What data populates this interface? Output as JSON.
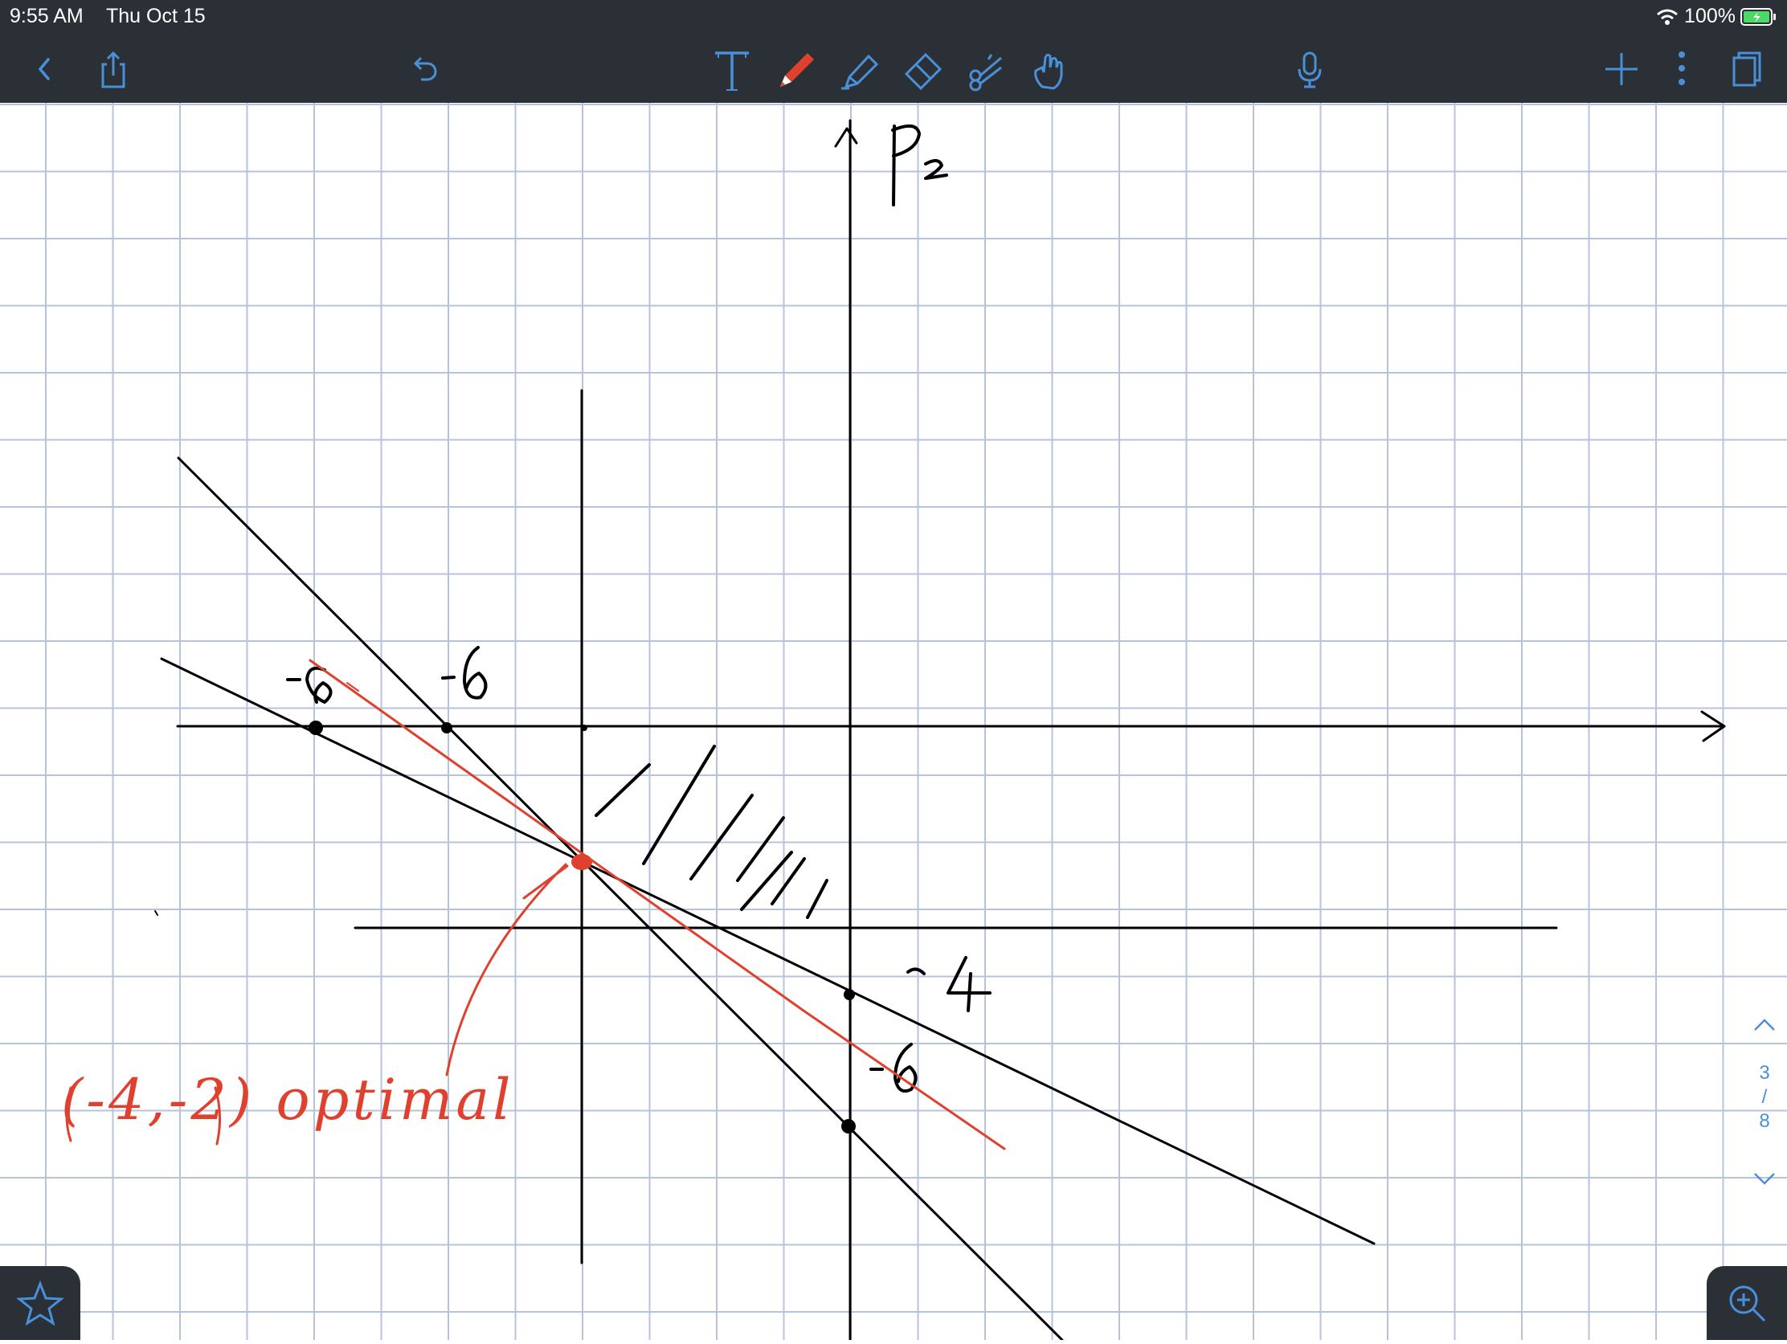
{
  "status_bar": {
    "time": "9:55 AM",
    "date": "Thu Oct 15",
    "battery": "100%"
  },
  "toolbar": {
    "icon_color": "#4a90d9",
    "active_tool_color": "#e0412f",
    "left": [
      "back-icon",
      "share-icon",
      "undo-icon"
    ],
    "tools": [
      "text-tool-icon",
      "pen-icon",
      "highlighter-icon",
      "eraser-icon",
      "lasso-scissors-icon",
      "hand-pointer-icon"
    ],
    "audio": "microphone-icon",
    "right": [
      "add-page-icon",
      "more-icon",
      "pages-icon"
    ]
  },
  "notes": {
    "axis_label": "P₂",
    "label_minus8": "-8",
    "label_minus6_top": "-6",
    "label_minus4": "-4",
    "label_minus6_bottom": "-6",
    "annotation": "(-4,-2) optimal",
    "ink_color": "#000000",
    "annotation_color": "#e0412f"
  },
  "page_nav": {
    "current": "3",
    "separator": "/",
    "total": "8"
  },
  "bottom": {
    "favorite": "star-icon",
    "zoom": "zoom-in-icon"
  }
}
